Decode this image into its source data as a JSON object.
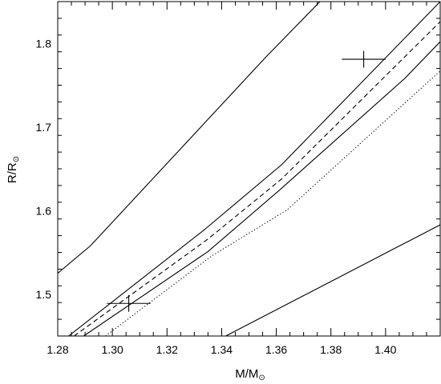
{
  "chart_data": {
    "type": "line",
    "xlabel": {
      "main": "M/M",
      "sub": "⊙"
    },
    "ylabel": {
      "main": "R/R",
      "sub": "⊙"
    },
    "xlim": [
      1.28,
      1.42
    ],
    "ylim": [
      1.45,
      1.85
    ],
    "xticks": [
      1.28,
      1.3,
      1.32,
      1.34,
      1.36,
      1.38,
      1.4
    ],
    "yticks": [
      1.5,
      1.6,
      1.7,
      1.8
    ],
    "xtick_labels": [
      "1.28",
      "1.30",
      "1.32",
      "1.34",
      "1.36",
      "1.38",
      "1.40"
    ],
    "ytick_labels": [
      "1.5",
      "1.6",
      "1.7",
      "1.8"
    ],
    "x_minor_step": 0.005,
    "y_minor_step": 0.02,
    "grid": false,
    "series": [
      {
        "style": "solid",
        "points": [
          [
            1.28,
            1.525
          ],
          [
            1.292,
            1.558
          ],
          [
            1.356,
            1.783
          ],
          [
            1.376,
            1.85
          ]
        ]
      },
      {
        "style": "solid",
        "points": [
          [
            1.284,
            1.45
          ],
          [
            1.334,
            1.578
          ],
          [
            1.362,
            1.655
          ],
          [
            1.42,
            1.85
          ]
        ]
      },
      {
        "style": "dashed",
        "points": [
          [
            1.286,
            1.45
          ],
          [
            1.335,
            1.566
          ],
          [
            1.362,
            1.638
          ],
          [
            1.42,
            1.826
          ]
        ]
      },
      {
        "style": "solid",
        "points": [
          [
            1.2895,
            1.45
          ],
          [
            1.335,
            1.551
          ],
          [
            1.361,
            1.624
          ],
          [
            1.407,
            1.758
          ],
          [
            1.42,
            1.802
          ]
        ]
      },
      {
        "style": "dotted",
        "points": [
          [
            1.2975,
            1.45
          ],
          [
            1.336,
            1.545
          ],
          [
            1.364,
            1.601
          ],
          [
            1.42,
            1.767
          ]
        ]
      },
      {
        "style": "solid",
        "points": [
          [
            1.3415,
            1.45
          ],
          [
            1.42,
            1.583
          ]
        ]
      }
    ],
    "error_points": [
      {
        "x": 1.306,
        "y": 1.489,
        "x_err": 0.008,
        "y_err": 0.01
      },
      {
        "x": 1.392,
        "y": 1.781,
        "x_err": 0.008,
        "y_err": 0.01
      }
    ]
  }
}
